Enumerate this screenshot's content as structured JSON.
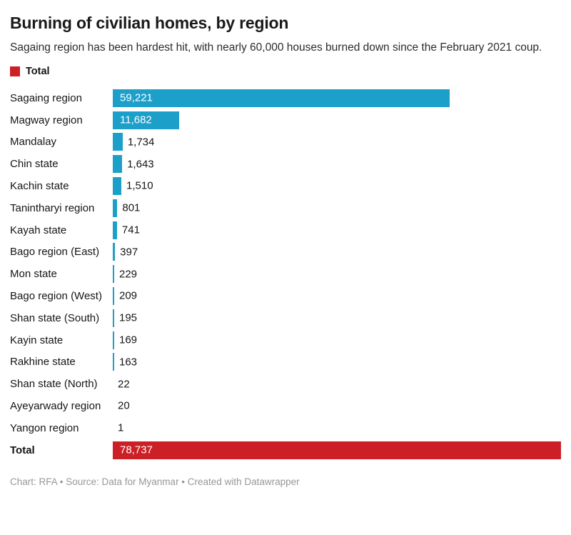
{
  "header": {
    "title": "Burning of civilian homes, by region",
    "subtitle": "Sagaing region has been hardest hit, with nearly 60,000 houses burned down since the February 2021 coup."
  },
  "legend": {
    "label": "Total",
    "swatch_color": "#cd2026"
  },
  "chart_data": {
    "type": "bar",
    "orientation": "horizontal",
    "title": "Burning of civilian homes, by region",
    "categories": [
      "Sagaing region",
      "Magway region",
      "Mandalay",
      "Chin state",
      "Kachin state",
      "Tanintharyi region",
      "Kayah state",
      "Bago region (East)",
      "Mon state",
      "Bago region (West)",
      "Shan state (South)",
      "Kayin state",
      "Rakhine state",
      "Shan state (North)",
      "Ayeyarwady region",
      "Yangon region",
      "Total"
    ],
    "values": [
      59221,
      11682,
      1734,
      1643,
      1510,
      801,
      741,
      397,
      229,
      209,
      195,
      169,
      163,
      22,
      20,
      1,
      78737
    ],
    "value_labels": [
      "59,221",
      "11,682",
      "1,734",
      "1,643",
      "1,510",
      "801",
      "741",
      "397",
      "229",
      "209",
      "195",
      "169",
      "163",
      "22",
      "20",
      "1",
      "78,737"
    ],
    "total_index": 16,
    "xlabel": "",
    "ylabel": "",
    "xlim": [
      0,
      78737
    ],
    "grid": false,
    "legend_position": "top-left",
    "bar_colors": {
      "default": "#1ca0c9",
      "total": "#cd2026"
    }
  },
  "footer": {
    "attribution": "Chart: RFA • Source: Data for Myanmar • Created with Datawrapper"
  }
}
